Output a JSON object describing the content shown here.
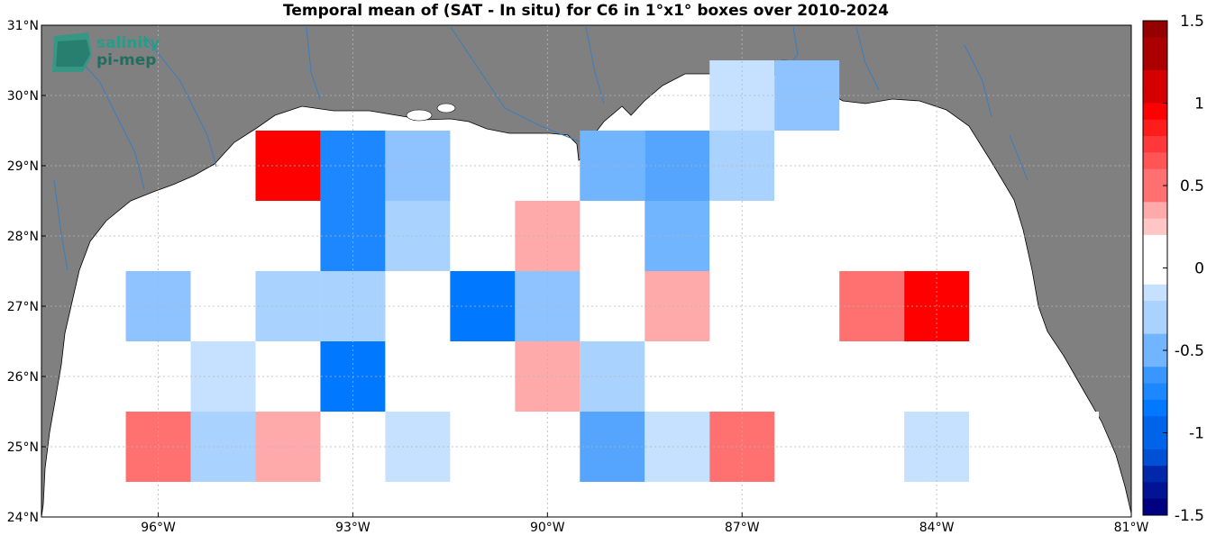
{
  "title": "Temporal mean of (SAT - In situ) for C6 in 1°x1° boxes over 2010-2024",
  "logo": {
    "line1": "salinity",
    "line2": "pi-mep"
  },
  "map": {
    "lon_range": [
      -97.8,
      -81.0
    ],
    "lat_range": [
      24.0,
      31.0
    ],
    "land_color": "#808080",
    "ocean_color": "#ffffff",
    "river_color": "#3a7dbf",
    "grid": true
  },
  "axes": {
    "lat_ticks": [
      {
        "value": 31,
        "label": "31°N"
      },
      {
        "value": 30,
        "label": "30°N"
      },
      {
        "value": 29,
        "label": "29°N"
      },
      {
        "value": 28,
        "label": "28°N"
      },
      {
        "value": 27,
        "label": "27°N"
      },
      {
        "value": 26,
        "label": "26°N"
      },
      {
        "value": 25,
        "label": "25°N"
      },
      {
        "value": 24,
        "label": "24°N"
      }
    ],
    "lon_ticks": [
      {
        "value": -96,
        "label": "96°W"
      },
      {
        "value": -93,
        "label": "93°W"
      },
      {
        "value": -90,
        "label": "90°W"
      },
      {
        "value": -87,
        "label": "87°W"
      },
      {
        "value": -84,
        "label": "84°W"
      },
      {
        "value": -81,
        "label": "81°W"
      }
    ]
  },
  "colorbar": {
    "range": [
      -1.5,
      1.5
    ],
    "step": 0.1,
    "ticks": [
      {
        "value": 1.5,
        "label": "1.5"
      },
      {
        "value": 1,
        "label": "1"
      },
      {
        "value": 0.5,
        "label": "0.5"
      },
      {
        "value": 0,
        "label": "0"
      },
      {
        "value": -0.5,
        "label": "-0.5"
      },
      {
        "value": -1,
        "label": "-1"
      },
      {
        "value": -1.5,
        "label": "-1.5"
      }
    ]
  },
  "chart_data": {
    "type": "heatmap",
    "title": "Temporal mean of (SAT - In situ) for C6 in 1°x1° boxes over 2010-2024",
    "cell_size_deg": 1,
    "value_range": [
      -1.5,
      1.5
    ],
    "cells": [
      {
        "lon_min": -87.5,
        "lat_min": 29.5,
        "value": -0.25
      },
      {
        "lon_min": -86.5,
        "lat_min": 29.5,
        "value": -0.4
      },
      {
        "lon_min": -94.5,
        "lat_min": 28.5,
        "value": 0.95
      },
      {
        "lon_min": -93.5,
        "lat_min": 28.5,
        "value": -0.8
      },
      {
        "lon_min": -92.5,
        "lat_min": 28.5,
        "value": -0.45
      },
      {
        "lon_min": -89.5,
        "lat_min": 28.5,
        "value": -0.55
      },
      {
        "lon_min": -88.5,
        "lat_min": 28.5,
        "value": -0.65
      },
      {
        "lon_min": -87.5,
        "lat_min": 28.5,
        "value": -0.35
      },
      {
        "lon_min": -86.5,
        "lat_min": 28.5,
        "value": -0.1
      },
      {
        "lon_min": -95.5,
        "lat_min": 27.5,
        "value": -0.1
      },
      {
        "lon_min": -94.5,
        "lat_min": 27.5,
        "value": -0.1
      },
      {
        "lon_min": -93.5,
        "lat_min": 27.5,
        "value": -0.8
      },
      {
        "lon_min": -92.5,
        "lat_min": 27.5,
        "value": -0.35
      },
      {
        "lon_min": -91.5,
        "lat_min": 27.5,
        "value": -0.15
      },
      {
        "lon_min": -90.5,
        "lat_min": 27.5,
        "value": 0.25
      },
      {
        "lon_min": -88.5,
        "lat_min": 27.5,
        "value": -0.55
      },
      {
        "lon_min": -87.5,
        "lat_min": 27.5,
        "value": -0.1
      },
      {
        "lon_min": -96.5,
        "lat_min": 26.5,
        "value": -0.45
      },
      {
        "lon_min": -95.5,
        "lat_min": 26.5,
        "value": -0.1
      },
      {
        "lon_min": -94.5,
        "lat_min": 26.5,
        "value": -0.3
      },
      {
        "lon_min": -93.5,
        "lat_min": 26.5,
        "value": -0.3
      },
      {
        "lon_min": -91.5,
        "lat_min": 26.5,
        "value": -0.95
      },
      {
        "lon_min": -90.5,
        "lat_min": 26.5,
        "value": -0.45
      },
      {
        "lon_min": -88.5,
        "lat_min": 26.5,
        "value": 0.25
      },
      {
        "lon_min": -85.5,
        "lat_min": 26.5,
        "value": 0.45
      },
      {
        "lon_min": -84.5,
        "lat_min": 26.5,
        "value": 0.85
      },
      {
        "lon_min": -95.5,
        "lat_min": 25.5,
        "value": -0.2
      },
      {
        "lon_min": -93.5,
        "lat_min": 25.5,
        "value": -0.95
      },
      {
        "lon_min": -92.5,
        "lat_min": 25.5,
        "value": 0.15
      },
      {
        "lon_min": -90.5,
        "lat_min": 25.5,
        "value": 0.25
      },
      {
        "lon_min": -89.5,
        "lat_min": 25.5,
        "value": -0.35
      },
      {
        "lon_min": -87.5,
        "lat_min": 25.5,
        "value": -0.1
      },
      {
        "lon_min": -86.5,
        "lat_min": 25.5,
        "value": 0.15
      },
      {
        "lon_min": -96.5,
        "lat_min": 24.5,
        "value": 0.45
      },
      {
        "lon_min": -95.5,
        "lat_min": 24.5,
        "value": -0.35
      },
      {
        "lon_min": -94.5,
        "lat_min": 24.5,
        "value": 0.25
      },
      {
        "lon_min": -92.5,
        "lat_min": 24.5,
        "value": -0.2
      },
      {
        "lon_min": -89.5,
        "lat_min": 24.5,
        "value": -0.65
      },
      {
        "lon_min": -88.5,
        "lat_min": 24.5,
        "value": -0.2
      },
      {
        "lon_min": -87.5,
        "lat_min": 24.5,
        "value": 0.45
      },
      {
        "lon_min": -84.5,
        "lat_min": 24.5,
        "value": -0.2
      },
      {
        "lon_min": -83.5,
        "lat_min": 24.5,
        "value": -0.1
      },
      {
        "lon_min": -82.5,
        "lat_min": 24.5,
        "value": -0.1
      }
    ]
  }
}
